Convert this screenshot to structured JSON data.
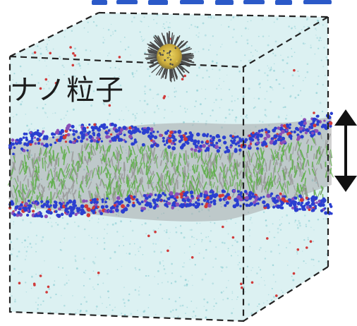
{
  "labels": {
    "nanoparticle": "ナノ粒子"
  },
  "colors": {
    "water": "#bfe6e8",
    "water_dot": "#8fcfd4",
    "ion": "#d03a3a",
    "headgroup_blue": "#2a3fd0",
    "headgroup_purple": "#8a4fb8",
    "tail_green": "#5fae4a",
    "tail_gray": "#9a9a9a",
    "particle_core": "#d9c04a",
    "particle_shell": "#4a4a4a",
    "box_edge": "#222222",
    "arrow": "#111111",
    "header_text": "#2b59c8"
  },
  "icons": {
    "thickness_arrow": "double-headed-vertical-arrow",
    "nanoparticle": "spiky-ball"
  }
}
